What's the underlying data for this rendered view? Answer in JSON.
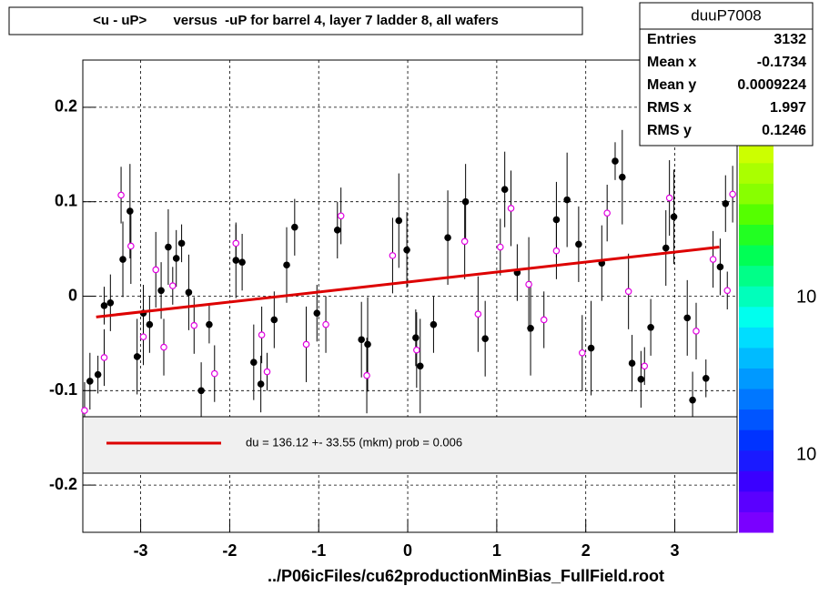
{
  "chart_data": {
    "type": "scatter",
    "title": "<u - uP>       versus  -uP for barrel 4, layer 7 ladder 8, all wafers",
    "x_label": "../P06icFiles/cu62productionMinBias_FullField.root",
    "xlim": [
      -3.65,
      3.7
    ],
    "ylim": [
      -0.25,
      0.25
    ],
    "xticks": [
      -3,
      -2,
      -1,
      0,
      1,
      2,
      3
    ],
    "yticks": [
      -0.2,
      -0.1,
      0,
      0.1,
      0.2
    ],
    "grid": true,
    "series": [
      {
        "marker": "filled",
        "color": "#000000",
        "x": [
          -3.57,
          -3.48,
          -3.41,
          -3.34,
          -3.2,
          -3.12,
          -3.04,
          -2.97,
          -2.9,
          -2.77,
          -2.69,
          -2.6,
          -2.54,
          -2.46,
          -2.32,
          -2.23,
          -1.93,
          -1.86,
          -1.73,
          -1.65,
          -1.5,
          -1.36,
          -1.27,
          -1.02,
          -0.79,
          -0.52,
          -0.45,
          -0.1,
          -0.01,
          0.09,
          0.14,
          0.29,
          0.45,
          0.65,
          0.87,
          1.09,
          1.23,
          1.38,
          1.67,
          1.79,
          1.92,
          2.06,
          2.18,
          2.33,
          2.41,
          2.52,
          2.62,
          2.73,
          2.9,
          2.99,
          3.14,
          3.2,
          3.35,
          3.51,
          3.57
        ],
        "values": [
          -0.09,
          -0.083,
          -0.01,
          -0.007,
          0.039,
          0.09,
          -0.064,
          -0.018,
          -0.03,
          0.006,
          0.052,
          0.04,
          0.056,
          0.004,
          -0.1,
          -0.03,
          0.038,
          0.036,
          -0.07,
          -0.093,
          -0.025,
          0.033,
          0.073,
          -0.018,
          0.07,
          -0.046,
          -0.051,
          0.08,
          0.049,
          -0.044,
          -0.074,
          -0.03,
          0.062,
          0.1,
          -0.045,
          0.113,
          0.025,
          -0.034,
          0.081,
          0.102,
          0.055,
          -0.055,
          0.035,
          0.143,
          0.126,
          -0.071,
          -0.088,
          -0.033,
          0.051,
          0.084,
          -0.023,
          -0.11,
          -0.087,
          0.031,
          0.098
        ],
        "errors": [
          0.03,
          0.02,
          0.02,
          0.03,
          0.04,
          0.05,
          0.04,
          0.03,
          0.03,
          0.03,
          0.04,
          0.03,
          0.02,
          0.04,
          0.03,
          0.02,
          0.04,
          0.03,
          0.04,
          0.03,
          0.03,
          0.04,
          0.03,
          0.03,
          0.03,
          0.04,
          0.05,
          0.05,
          0.04,
          0.03,
          0.05,
          0.03,
          0.05,
          0.04,
          0.04,
          0.04,
          0.03,
          0.05,
          0.04,
          0.05,
          0.04,
          0.05,
          0.04,
          0.02,
          0.05,
          0.03,
          0.03,
          0.03,
          0.04,
          0.05,
          0.04,
          0.03,
          0.02,
          0.03,
          0.03
        ]
      },
      {
        "marker": "open",
        "color": "#e000e0",
        "x": [
          -3.63,
          -3.41,
          -3.22,
          -3.11,
          -2.97,
          -2.83,
          -2.74,
          -2.64,
          -2.4,
          -2.17,
          -1.93,
          -1.64,
          -1.58,
          -1.14,
          -0.92,
          -0.75,
          -0.46,
          -0.17,
          0.1,
          0.64,
          0.79,
          1.04,
          1.16,
          1.36,
          1.53,
          1.67,
          1.96,
          2.24,
          2.48,
          2.66,
          2.94,
          3.24,
          3.43,
          3.59,
          3.65
        ],
        "values": [
          -0.121,
          -0.065,
          0.107,
          0.053,
          -0.043,
          0.028,
          -0.054,
          0.011,
          -0.031,
          -0.082,
          0.056,
          -0.041,
          -0.08,
          -0.051,
          -0.03,
          0.085,
          -0.084,
          0.043,
          -0.057,
          0.058,
          -0.019,
          0.052,
          0.093,
          0.0125,
          -0.025,
          0.048,
          -0.06,
          0.088,
          0.005,
          -0.074,
          0.104,
          -0.037,
          0.039,
          0.006,
          0.108
        ],
        "errors": [
          0.03,
          0.03,
          0.03,
          0.04,
          0.03,
          0.04,
          0.03,
          0.02,
          0.03,
          0.03,
          0.02,
          0.03,
          0.02,
          0.04,
          0.03,
          0.03,
          0.04,
          0.04,
          0.04,
          0.04,
          0.04,
          0.03,
          0.04,
          0.05,
          0.03,
          0.03,
          0.04,
          0.03,
          0.04,
          0.02,
          0.04,
          0.03,
          0.03,
          0.02,
          0.03
        ]
      }
    ],
    "fit": {
      "name": "du =  136.12 +- 33.55 (mkm) prob = 0.006",
      "color": "#dd0000",
      "x": [
        -3.5,
        3.5
      ],
      "values": [
        -0.022,
        0.052
      ]
    },
    "stats": {
      "title": "duuP7008",
      "rows": [
        [
          "Entries",
          "3132"
        ],
        [
          "Mean x",
          "-0.1734"
        ],
        [
          "Mean y",
          "0.0009224"
        ],
        [
          "RMS x",
          "1.997"
        ],
        [
          "RMS y",
          "0.1246"
        ]
      ]
    },
    "colorbar_labels": [
      "10",
      "10"
    ]
  }
}
